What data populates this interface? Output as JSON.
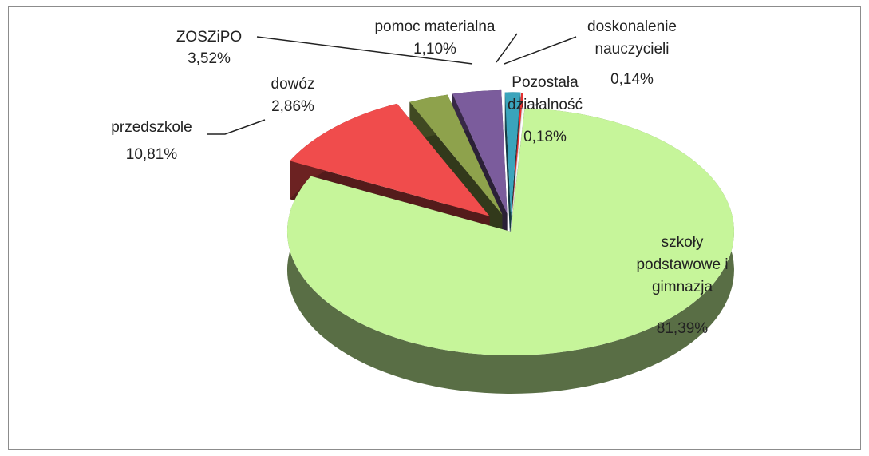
{
  "chart_data": {
    "type": "pie3d",
    "categories": [
      "szkoły podstawowe i gimnazja",
      "przedszkole",
      "dowóz",
      "ZOSZiPO",
      "pomoc materialna",
      "doskonalenie nauczycieli",
      "Pozostała działalność"
    ],
    "values": [
      81.39,
      10.81,
      2.86,
      3.52,
      1.1,
      0.14,
      0.18
    ],
    "value_labels": [
      "81,39%",
      "10,81%",
      "2,86%",
      "3,52%",
      "1,10%",
      "0,14%",
      "0,18%"
    ],
    "colors": [
      "#c6f59a",
      "#f04c4c",
      "#8ea24c",
      "#7b5c9c",
      "#3aa4bc",
      "#e83030",
      "#ffffff"
    ]
  }
}
